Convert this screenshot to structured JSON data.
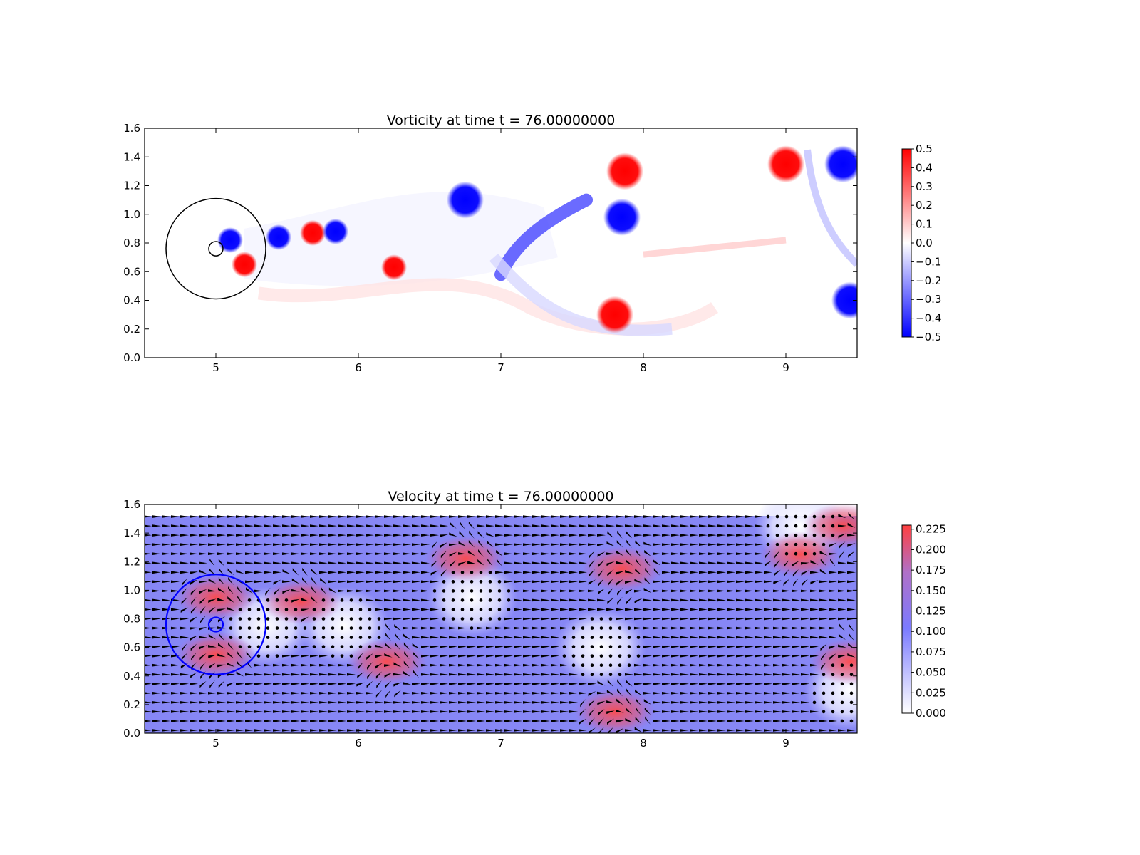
{
  "chart_data": [
    {
      "type": "heatmap",
      "title": "Vorticity at time t =    76.00000000",
      "xlabel": "",
      "ylabel": "",
      "xlim": [
        4.5,
        9.5
      ],
      "ylim": [
        0.0,
        1.6
      ],
      "x_ticks": [
        "5",
        "6",
        "7",
        "8",
        "9"
      ],
      "y_ticks": [
        "0.0",
        "0.2",
        "0.4",
        "0.6",
        "0.8",
        "1.0",
        "1.2",
        "1.4",
        "1.6"
      ],
      "colorbar": {
        "ticks": [
          "0.5",
          "0.4",
          "0.3",
          "0.2",
          "0.1",
          "0.0",
          "−0.1",
          "−0.2",
          "−0.3",
          "−0.4",
          "−0.5"
        ],
        "range": [
          -0.5,
          0.5
        ],
        "colormap": "bwr",
        "low_color": "#0000ff",
        "mid_color": "#ffffff",
        "high_color": "#ff0000"
      },
      "overlays": [
        {
          "shape": "circle",
          "center": [
            5.0,
            0.76
          ],
          "radius": 0.35,
          "color": "#000000"
        },
        {
          "shape": "circle",
          "center": [
            5.0,
            0.76
          ],
          "radius": 0.05,
          "color": "#000000"
        }
      ],
      "vortices": [
        {
          "x": 5.2,
          "y": 0.65,
          "sign": 1
        },
        {
          "x": 5.1,
          "y": 0.82,
          "sign": -1
        },
        {
          "x": 5.44,
          "y": 0.84,
          "sign": -1
        },
        {
          "x": 5.68,
          "y": 0.87,
          "sign": 1
        },
        {
          "x": 5.84,
          "y": 0.88,
          "sign": -1
        },
        {
          "x": 6.25,
          "y": 0.63,
          "sign": 1
        },
        {
          "x": 6.75,
          "y": 1.1,
          "sign": -1
        },
        {
          "x": 7.85,
          "y": 0.98,
          "sign": -1
        },
        {
          "x": 7.87,
          "y": 1.3,
          "sign": 1
        },
        {
          "x": 7.8,
          "y": 0.3,
          "sign": 1
        },
        {
          "x": 9.0,
          "y": 1.35,
          "sign": 1
        },
        {
          "x": 9.4,
          "y": 1.35,
          "sign": -1
        },
        {
          "x": 9.45,
          "y": 0.4,
          "sign": -1
        }
      ]
    },
    {
      "type": "heatmap",
      "title": "Velocity at time t =    76.00000000",
      "xlabel": "",
      "ylabel": "",
      "xlim": [
        4.5,
        9.5
      ],
      "ylim": [
        0.0,
        1.6
      ],
      "x_ticks": [
        "5",
        "6",
        "7",
        "8",
        "9"
      ],
      "y_ticks": [
        "0.0",
        "0.2",
        "0.4",
        "0.6",
        "0.8",
        "1.0",
        "1.2",
        "1.4",
        "1.6"
      ],
      "colorbar": {
        "ticks": [
          "0.225",
          "0.200",
          "0.175",
          "0.150",
          "0.125",
          "0.100",
          "0.075",
          "0.050",
          "0.025",
          "0.000"
        ],
        "range": [
          0.0,
          0.23
        ],
        "colormap": "white-blue-red",
        "low_color": "#ffffff",
        "mid_color": "#7b7bff",
        "high_color": "#ff4040"
      },
      "overlays": [
        {
          "shape": "circle",
          "center": [
            5.0,
            0.76
          ],
          "radius": 0.35,
          "color": "#0000ff"
        },
        {
          "shape": "circle",
          "center": [
            5.0,
            0.76
          ],
          "radius": 0.05,
          "color": "#0000ff"
        }
      ],
      "fast_regions": [
        {
          "x": 5.0,
          "y": 0.95
        },
        {
          "x": 5.0,
          "y": 0.55
        },
        {
          "x": 5.6,
          "y": 0.92
        },
        {
          "x": 6.2,
          "y": 0.5
        },
        {
          "x": 6.75,
          "y": 1.22
        },
        {
          "x": 7.85,
          "y": 1.15
        },
        {
          "x": 7.8,
          "y": 0.15
        },
        {
          "x": 9.1,
          "y": 1.25
        },
        {
          "x": 9.4,
          "y": 1.45
        },
        {
          "x": 9.45,
          "y": 0.5
        }
      ],
      "slow_regions": [
        {
          "x": 7.7,
          "y": 0.6
        },
        {
          "x": 5.9,
          "y": 0.75
        },
        {
          "x": 6.8,
          "y": 0.95
        },
        {
          "x": 9.1,
          "y": 1.45
        },
        {
          "x": 9.45,
          "y": 0.3
        },
        {
          "x": 5.35,
          "y": 0.75
        }
      ]
    }
  ]
}
